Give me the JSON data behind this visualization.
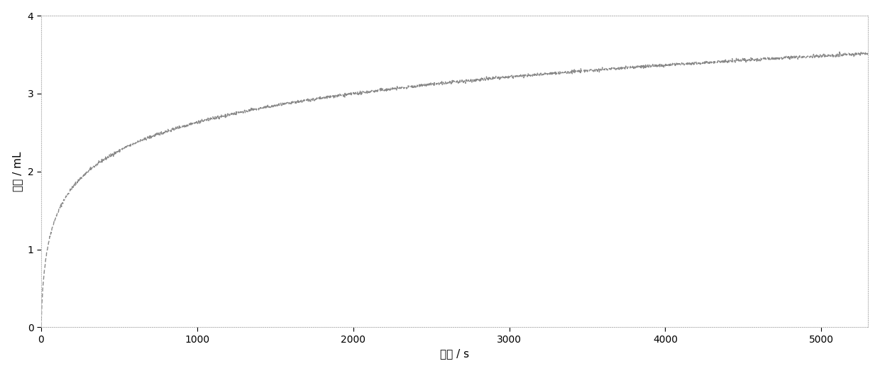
{
  "xlabel": "时间 / s",
  "ylabel": "体积 / mL",
  "xlim": [
    0,
    5300
  ],
  "ylim": [
    0,
    4
  ],
  "xticks": [
    0,
    1000,
    2000,
    3000,
    4000,
    5000
  ],
  "yticks": [
    0,
    1,
    2,
    3,
    4
  ],
  "line_color": "#888888",
  "line_width": 1.0,
  "background_color": "#ffffff",
  "figure_background": "#ffffff",
  "xlabel_fontsize": 11,
  "ylabel_fontsize": 11,
  "tick_fontsize": 10,
  "x_max": 5300,
  "log_A": 0.435,
  "log_B": 0.055,
  "noise_std": 0.01,
  "noise_seed": 42
}
